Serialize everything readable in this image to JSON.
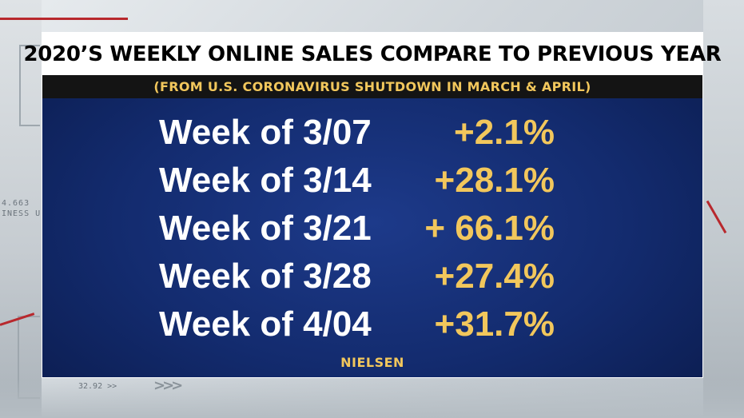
{
  "graphic": {
    "title": "2020’S WEEKLY ONLINE SALES COMPARE TO PREVIOUS YEAR",
    "subtitle": "(FROM U.S. CORONAVIRUS SHUTDOWN IN MARCH & APRIL)",
    "rows": [
      {
        "label": "Week of 3/07",
        "value": "+2.1%"
      },
      {
        "label": "Week of 3/14",
        "value": "+28.1%"
      },
      {
        "label": "Week of 3/21",
        "value": "+ 66.1%"
      },
      {
        "label": "Week of 3/28",
        "value": "+27.4%"
      },
      {
        "label": "Week of 4/04",
        "value": "+31.7%"
      }
    ],
    "source": "NIELSEN"
  },
  "background": {
    "ticker_left_1": "4.663",
    "ticker_left_2": "INESS U",
    "ticker_bottom": "32.92 >>",
    "arrows": ">>>"
  },
  "colors": {
    "panel_blue": "#132b6e",
    "accent_gold": "#f2c75c",
    "title_bg": "#ffffff",
    "subtitle_bg": "#141414"
  }
}
